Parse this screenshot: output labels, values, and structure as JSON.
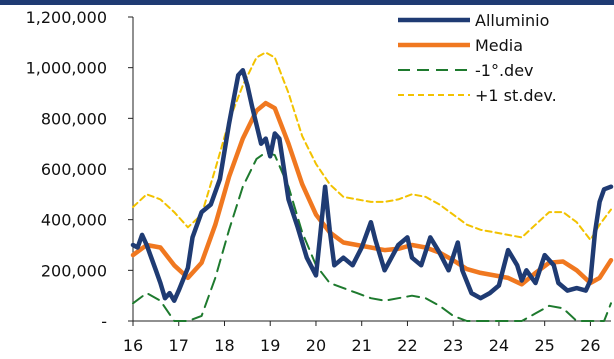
{
  "chart_data": {
    "type": "line",
    "title": "",
    "xlabel": "",
    "ylabel": "",
    "xlim": [
      16,
      26.45
    ],
    "ylim": [
      0,
      1200000
    ],
    "grid": false,
    "legend_position": "top-right",
    "x_ticks": [
      "16",
      "17",
      "18",
      "19",
      "20",
      "21",
      "22",
      "23",
      "24",
      "25",
      "26"
    ],
    "y_ticks": [
      {
        "value": 0,
        "label": "-"
      },
      {
        "value": 200000,
        "label": "200,000"
      },
      {
        "value": 400000,
        "label": "400,000"
      },
      {
        "value": 600000,
        "label": "600,000"
      },
      {
        "value": 800000,
        "label": "800,000"
      },
      {
        "value": 1000000,
        "label": "1,000,000"
      },
      {
        "value": 1200000,
        "label": "1,200,000"
      }
    ],
    "series": [
      {
        "name": "Alluminio",
        "color": "#1f3b73",
        "style": "solid-thick",
        "points": [
          [
            16.0,
            300000
          ],
          [
            16.1,
            290000
          ],
          [
            16.2,
            340000
          ],
          [
            16.3,
            300000
          ],
          [
            16.4,
            250000
          ],
          [
            16.5,
            200000
          ],
          [
            16.6,
            150000
          ],
          [
            16.7,
            90000
          ],
          [
            16.8,
            110000
          ],
          [
            16.9,
            80000
          ],
          [
            17.0,
            120000
          ],
          [
            17.2,
            210000
          ],
          [
            17.3,
            330000
          ],
          [
            17.5,
            430000
          ],
          [
            17.7,
            460000
          ],
          [
            17.9,
            560000
          ],
          [
            18.1,
            780000
          ],
          [
            18.3,
            970000
          ],
          [
            18.4,
            990000
          ],
          [
            18.5,
            930000
          ],
          [
            18.6,
            850000
          ],
          [
            18.8,
            700000
          ],
          [
            18.9,
            720000
          ],
          [
            19.0,
            650000
          ],
          [
            19.1,
            740000
          ],
          [
            19.2,
            720000
          ],
          [
            19.4,
            480000
          ],
          [
            19.6,
            370000
          ],
          [
            19.8,
            250000
          ],
          [
            20.0,
            180000
          ],
          [
            20.1,
            350000
          ],
          [
            20.2,
            530000
          ],
          [
            20.3,
            360000
          ],
          [
            20.4,
            220000
          ],
          [
            20.6,
            250000
          ],
          [
            20.8,
            220000
          ],
          [
            21.0,
            290000
          ],
          [
            21.2,
            390000
          ],
          [
            21.3,
            320000
          ],
          [
            21.5,
            200000
          ],
          [
            21.8,
            300000
          ],
          [
            22.0,
            330000
          ],
          [
            22.1,
            250000
          ],
          [
            22.3,
            220000
          ],
          [
            22.5,
            330000
          ],
          [
            22.7,
            270000
          ],
          [
            22.9,
            200000
          ],
          [
            23.1,
            310000
          ],
          [
            23.2,
            200000
          ],
          [
            23.4,
            110000
          ],
          [
            23.6,
            90000
          ],
          [
            23.8,
            110000
          ],
          [
            24.0,
            140000
          ],
          [
            24.2,
            280000
          ],
          [
            24.4,
            220000
          ],
          [
            24.5,
            160000
          ],
          [
            24.6,
            200000
          ],
          [
            24.8,
            150000
          ],
          [
            25.0,
            260000
          ],
          [
            25.2,
            220000
          ],
          [
            25.3,
            150000
          ],
          [
            25.5,
            120000
          ],
          [
            25.7,
            130000
          ],
          [
            25.9,
            120000
          ],
          [
            26.0,
            160000
          ],
          [
            26.1,
            350000
          ],
          [
            26.2,
            470000
          ],
          [
            26.3,
            520000
          ],
          [
            26.45,
            530000
          ]
        ]
      },
      {
        "name": "Media",
        "color": "#f07820",
        "style": "solid-thick",
        "points": [
          [
            16.0,
            260000
          ],
          [
            16.3,
            300000
          ],
          [
            16.6,
            290000
          ],
          [
            16.9,
            220000
          ],
          [
            17.2,
            170000
          ],
          [
            17.5,
            230000
          ],
          [
            17.8,
            380000
          ],
          [
            18.1,
            570000
          ],
          [
            18.4,
            720000
          ],
          [
            18.7,
            830000
          ],
          [
            18.9,
            860000
          ],
          [
            19.1,
            840000
          ],
          [
            19.4,
            700000
          ],
          [
            19.7,
            540000
          ],
          [
            20.0,
            420000
          ],
          [
            20.3,
            350000
          ],
          [
            20.6,
            310000
          ],
          [
            20.9,
            300000
          ],
          [
            21.2,
            290000
          ],
          [
            21.5,
            280000
          ],
          [
            21.8,
            285000
          ],
          [
            22.1,
            300000
          ],
          [
            22.4,
            290000
          ],
          [
            22.7,
            270000
          ],
          [
            23.0,
            240000
          ],
          [
            23.3,
            205000
          ],
          [
            23.6,
            190000
          ],
          [
            23.9,
            180000
          ],
          [
            24.2,
            170000
          ],
          [
            24.5,
            145000
          ],
          [
            24.8,
            190000
          ],
          [
            25.1,
            230000
          ],
          [
            25.4,
            235000
          ],
          [
            25.7,
            200000
          ],
          [
            26.0,
            150000
          ],
          [
            26.2,
            170000
          ],
          [
            26.45,
            240000
          ]
        ]
      },
      {
        "name": "-1°.dev",
        "color": "#1e7a2e",
        "style": "dashed-long",
        "points": [
          [
            16.0,
            70000
          ],
          [
            16.3,
            110000
          ],
          [
            16.6,
            80000
          ],
          [
            16.9,
            0
          ],
          [
            17.2,
            0
          ],
          [
            17.5,
            20000
          ],
          [
            17.8,
            170000
          ],
          [
            18.1,
            360000
          ],
          [
            18.4,
            530000
          ],
          [
            18.7,
            640000
          ],
          [
            18.9,
            665000
          ],
          [
            19.1,
            655000
          ],
          [
            19.4,
            530000
          ],
          [
            19.7,
            350000
          ],
          [
            20.0,
            220000
          ],
          [
            20.3,
            150000
          ],
          [
            20.6,
            130000
          ],
          [
            20.9,
            110000
          ],
          [
            21.2,
            90000
          ],
          [
            21.5,
            80000
          ],
          [
            21.8,
            90000
          ],
          [
            22.1,
            100000
          ],
          [
            22.4,
            90000
          ],
          [
            22.7,
            60000
          ],
          [
            23.0,
            20000
          ],
          [
            23.3,
            0
          ],
          [
            23.6,
            0
          ],
          [
            24.0,
            0
          ],
          [
            24.5,
            0
          ],
          [
            24.8,
            30000
          ],
          [
            25.1,
            60000
          ],
          [
            25.4,
            50000
          ],
          [
            25.7,
            0
          ],
          [
            26.0,
            0
          ],
          [
            26.3,
            0
          ],
          [
            26.45,
            70000
          ]
        ]
      },
      {
        "name": "+1 st.dev.",
        "color": "#f2c200",
        "style": "dashed-short",
        "points": [
          [
            16.0,
            450000
          ],
          [
            16.3,
            500000
          ],
          [
            16.6,
            480000
          ],
          [
            16.9,
            430000
          ],
          [
            17.2,
            370000
          ],
          [
            17.5,
            420000
          ],
          [
            17.8,
            600000
          ],
          [
            18.1,
            790000
          ],
          [
            18.4,
            930000
          ],
          [
            18.7,
            1040000
          ],
          [
            18.9,
            1060000
          ],
          [
            19.1,
            1040000
          ],
          [
            19.4,
            900000
          ],
          [
            19.7,
            730000
          ],
          [
            20.0,
            620000
          ],
          [
            20.3,
            540000
          ],
          [
            20.6,
            490000
          ],
          [
            20.9,
            480000
          ],
          [
            21.2,
            470000
          ],
          [
            21.5,
            470000
          ],
          [
            21.8,
            480000
          ],
          [
            22.1,
            500000
          ],
          [
            22.4,
            490000
          ],
          [
            22.7,
            460000
          ],
          [
            23.0,
            420000
          ],
          [
            23.3,
            380000
          ],
          [
            23.6,
            360000
          ],
          [
            23.9,
            350000
          ],
          [
            24.2,
            340000
          ],
          [
            24.5,
            330000
          ],
          [
            24.8,
            380000
          ],
          [
            25.1,
            430000
          ],
          [
            25.4,
            430000
          ],
          [
            25.7,
            390000
          ],
          [
            26.0,
            320000
          ],
          [
            26.2,
            380000
          ],
          [
            26.45,
            440000
          ]
        ]
      }
    ]
  }
}
